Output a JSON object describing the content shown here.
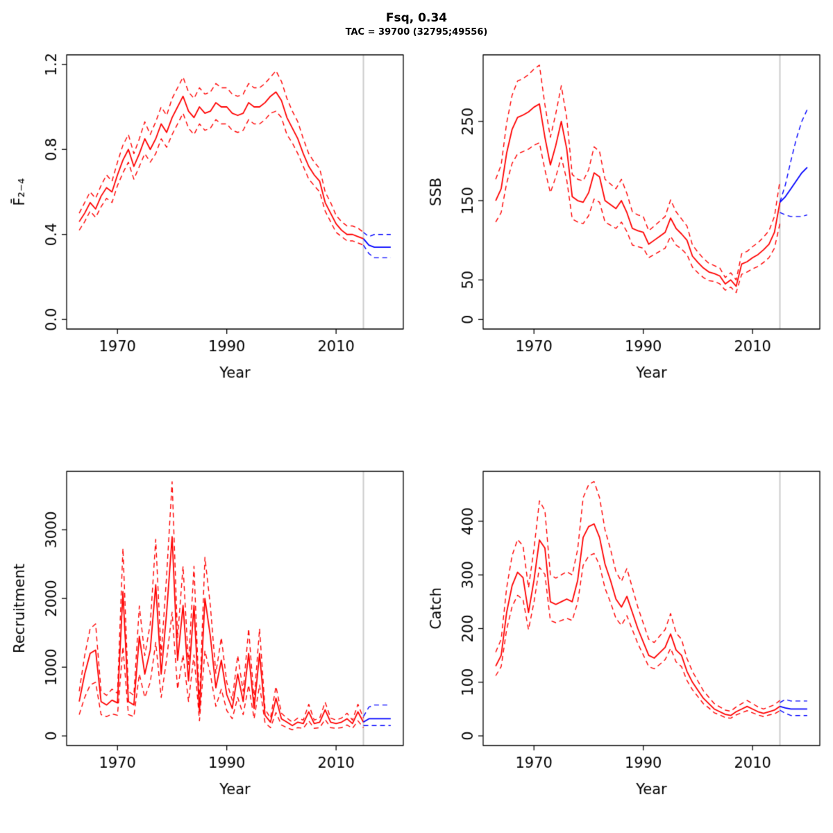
{
  "header": {
    "title": "Fsq, 0.34",
    "subtitle": "TAC = 39700 (32795;49556)"
  },
  "colors": {
    "history_line": "#ff0000",
    "forecast_line": "#0000ff",
    "divider_line": "#cccccc",
    "axis": "#000000",
    "background": "#ffffff"
  },
  "chart_data": {
    "type": "line",
    "title": "Fsq, 0.34",
    "subtitle": "TAC = 39700 (32795;49556)",
    "xlabel": "Year",
    "xlim": [
      1960.7,
      2022.3
    ],
    "xticks": [
      1970,
      1990,
      2010
    ],
    "divider_year": 2015,
    "grid": false,
    "legend": "none",
    "x_hist": [
      1963,
      1964,
      1965,
      1966,
      1967,
      1968,
      1969,
      1970,
      1971,
      1972,
      1973,
      1974,
      1975,
      1976,
      1977,
      1978,
      1979,
      1980,
      1981,
      1982,
      1983,
      1984,
      1985,
      1986,
      1987,
      1988,
      1989,
      1990,
      1991,
      1992,
      1993,
      1994,
      1995,
      1996,
      1997,
      1998,
      1999,
      2000,
      2001,
      2002,
      2003,
      2004,
      2005,
      2006,
      2007,
      2008,
      2009,
      2010,
      2011,
      2012,
      2013,
      2014,
      2015
    ],
    "x_forecast": [
      2015,
      2016,
      2017,
      2018,
      2019,
      2020
    ],
    "panels": [
      {
        "name": "fbar",
        "ylabel": "F̄₂₋₄",
        "ylim": [
          -0.045,
          1.245
        ],
        "yticks": [
          0,
          0.4,
          0.8,
          1.2
        ],
        "ytick_labels": [
          "0.0",
          "0.4",
          "0.8",
          "1.2"
        ],
        "median": [
          0.46,
          0.5,
          0.55,
          0.52,
          0.58,
          0.62,
          0.6,
          0.68,
          0.75,
          0.8,
          0.72,
          0.78,
          0.85,
          0.8,
          0.85,
          0.92,
          0.88,
          0.95,
          1.0,
          1.05,
          0.98,
          0.95,
          1.0,
          0.97,
          0.98,
          1.02,
          1.0,
          1.0,
          0.97,
          0.96,
          0.97,
          1.02,
          1.0,
          1.0,
          1.02,
          1.05,
          1.07,
          1.03,
          0.95,
          0.9,
          0.85,
          0.78,
          0.72,
          0.68,
          0.65,
          0.55,
          0.5,
          0.45,
          0.42,
          0.4,
          0.4,
          0.39,
          0.38
        ],
        "lo": [
          0.42,
          0.46,
          0.51,
          0.48,
          0.53,
          0.57,
          0.55,
          0.63,
          0.69,
          0.74,
          0.66,
          0.72,
          0.78,
          0.74,
          0.78,
          0.85,
          0.81,
          0.87,
          0.92,
          0.97,
          0.9,
          0.87,
          0.92,
          0.89,
          0.9,
          0.94,
          0.92,
          0.92,
          0.89,
          0.88,
          0.89,
          0.94,
          0.92,
          0.92,
          0.94,
          0.97,
          0.98,
          0.95,
          0.87,
          0.83,
          0.78,
          0.72,
          0.66,
          0.63,
          0.6,
          0.51,
          0.46,
          0.41,
          0.39,
          0.37,
          0.37,
          0.36,
          0.35
        ],
        "hi": [
          0.5,
          0.55,
          0.6,
          0.57,
          0.63,
          0.68,
          0.65,
          0.74,
          0.82,
          0.87,
          0.78,
          0.85,
          0.93,
          0.87,
          0.93,
          1.0,
          0.96,
          1.04,
          1.09,
          1.14,
          1.07,
          1.04,
          1.09,
          1.06,
          1.07,
          1.11,
          1.09,
          1.09,
          1.06,
          1.05,
          1.06,
          1.11,
          1.09,
          1.09,
          1.11,
          1.14,
          1.17,
          1.12,
          1.04,
          0.98,
          0.93,
          0.85,
          0.78,
          0.74,
          0.71,
          0.6,
          0.55,
          0.49,
          0.46,
          0.44,
          0.44,
          0.43,
          0.41
        ],
        "forecast": {
          "median": [
            0.38,
            0.35,
            0.34,
            0.34,
            0.34,
            0.34
          ],
          "lo": [
            0.35,
            0.31,
            0.29,
            0.29,
            0.29,
            0.29
          ],
          "hi": [
            0.41,
            0.39,
            0.4,
            0.4,
            0.4,
            0.4
          ]
        }
      },
      {
        "name": "ssb",
        "ylabel": "SSB",
        "ylim": [
          -12,
          334
        ],
        "yticks": [
          0,
          50,
          150,
          250
        ],
        "ytick_labels": [
          "0",
          "50",
          "150",
          "250"
        ],
        "median": [
          150,
          165,
          210,
          240,
          255,
          258,
          262,
          268,
          272,
          230,
          195,
          220,
          250,
          215,
          155,
          150,
          148,
          160,
          185,
          180,
          150,
          145,
          140,
          150,
          135,
          115,
          112,
          110,
          95,
          100,
          105,
          110,
          128,
          115,
          108,
          100,
          80,
          72,
          65,
          60,
          58,
          55,
          45,
          50,
          42,
          70,
          73,
          78,
          82,
          88,
          95,
          110,
          148
        ],
        "lo": [
          123,
          135,
          172,
          197,
          209,
          212,
          215,
          220,
          223,
          189,
          160,
          180,
          205,
          176,
          127,
          123,
          121,
          131,
          152,
          148,
          123,
          119,
          115,
          123,
          111,
          94,
          92,
          90,
          78,
          82,
          86,
          90,
          105,
          94,
          89,
          82,
          66,
          59,
          53,
          49,
          48,
          45,
          37,
          41,
          34,
          57,
          60,
          64,
          67,
          72,
          78,
          90,
          121
        ],
        "hi": [
          177,
          195,
          248,
          283,
          301,
          304,
          309,
          316,
          321,
          271,
          230,
          260,
          295,
          254,
          183,
          177,
          175,
          189,
          218,
          212,
          177,
          171,
          165,
          177,
          159,
          136,
          132,
          130,
          112,
          118,
          124,
          130,
          151,
          136,
          127,
          118,
          94,
          85,
          77,
          71,
          68,
          65,
          53,
          59,
          50,
          83,
          86,
          92,
          97,
          104,
          112,
          130,
          175
        ],
        "forecast": {
          "median": [
            148,
            155,
            165,
            175,
            185,
            192
          ],
          "lo": [
            135,
            132,
            130,
            130,
            130,
            132
          ],
          "hi": [
            148,
            170,
            200,
            228,
            250,
            265
          ]
        }
      },
      {
        "name": "recruitment",
        "ylabel": "Recruitment",
        "ylim": [
          -140,
          3850
        ],
        "yticks": [
          0,
          1000,
          2000,
          3000
        ],
        "ytick_labels": [
          "0",
          "1000",
          "2000",
          "3000"
        ],
        "median": [
          500,
          900,
          1200,
          1250,
          500,
          450,
          520,
          480,
          2100,
          500,
          450,
          1450,
          900,
          1250,
          2200,
          900,
          1800,
          2900,
          1100,
          1900,
          800,
          1900,
          350,
          2000,
          1450,
          700,
          1100,
          600,
          400,
          900,
          500,
          1200,
          400,
          1200,
          300,
          200,
          550,
          250,
          200,
          150,
          200,
          180,
          350,
          180,
          200,
          380,
          200,
          180,
          200,
          250,
          180,
          350,
          200
        ],
        "lo": [
          310,
          560,
          740,
          780,
          310,
          280,
          320,
          300,
          1300,
          310,
          280,
          900,
          560,
          780,
          1360,
          560,
          1120,
          1800,
          680,
          1180,
          500,
          1180,
          220,
          1240,
          900,
          430,
          680,
          370,
          250,
          560,
          310,
          740,
          250,
          740,
          190,
          120,
          340,
          160,
          120,
          90,
          120,
          110,
          220,
          110,
          120,
          240,
          120,
          110,
          120,
          160,
          110,
          220,
          120
        ],
        "hi": [
          650,
          1170,
          1560,
          1630,
          650,
          590,
          680,
          620,
          2730,
          650,
          590,
          1890,
          1170,
          1630,
          2860,
          1170,
          2340,
          3700,
          1430,
          2470,
          1040,
          2470,
          460,
          2600,
          1890,
          910,
          1430,
          780,
          520,
          1170,
          650,
          1560,
          520,
          1560,
          390,
          260,
          720,
          330,
          260,
          200,
          260,
          230,
          460,
          230,
          260,
          490,
          260,
          230,
          260,
          330,
          230,
          460,
          260
        ],
        "forecast": {
          "median": [
            200,
            250,
            250,
            250,
            250,
            250
          ],
          "lo": [
            150,
            150,
            150,
            150,
            150,
            150
          ],
          "hi": [
            280,
            420,
            450,
            450,
            450,
            450
          ]
        }
      },
      {
        "name": "catch",
        "ylabel": "Catch",
        "ylim": [
          -18,
          493
        ],
        "yticks": [
          0,
          100,
          200,
          300,
          400
        ],
        "ytick_labels": [
          "0",
          "100",
          "200",
          "300",
          "400"
        ],
        "median": [
          130,
          150,
          230,
          280,
          305,
          295,
          230,
          290,
          365,
          350,
          250,
          245,
          250,
          255,
          250,
          290,
          370,
          390,
          395,
          370,
          320,
          290,
          255,
          240,
          260,
          230,
          200,
          175,
          150,
          145,
          155,
          165,
          190,
          160,
          150,
          120,
          100,
          85,
          70,
          60,
          50,
          45,
          40,
          38,
          45,
          50,
          55,
          50,
          45,
          42,
          45,
          48,
          55
        ],
        "lo": [
          112,
          129,
          198,
          241,
          262,
          254,
          198,
          249,
          314,
          301,
          215,
          211,
          215,
          219,
          215,
          249,
          318,
          335,
          340,
          318,
          275,
          249,
          219,
          206,
          224,
          198,
          172,
          151,
          129,
          125,
          133,
          142,
          163,
          138,
          129,
          103,
          86,
          73,
          60,
          52,
          43,
          39,
          34,
          33,
          39,
          43,
          47,
          43,
          39,
          36,
          39,
          41,
          47
        ],
        "hi": [
          156,
          180,
          276,
          336,
          366,
          354,
          276,
          348,
          438,
          420,
          300,
          294,
          300,
          306,
          300,
          348,
          444,
          468,
          474,
          444,
          384,
          348,
          306,
          288,
          312,
          276,
          240,
          210,
          180,
          174,
          186,
          198,
          228,
          192,
          180,
          144,
          120,
          102,
          84,
          72,
          60,
          54,
          48,
          46,
          54,
          60,
          66,
          60,
          54,
          50,
          54,
          58,
          66
        ],
        "forecast": {
          "median": [
            55,
            52,
            50,
            50,
            50,
            50
          ],
          "lo": [
            48,
            42,
            38,
            38,
            38,
            38
          ],
          "hi": [
            62,
            68,
            65,
            65,
            65,
            65
          ]
        }
      }
    ]
  }
}
